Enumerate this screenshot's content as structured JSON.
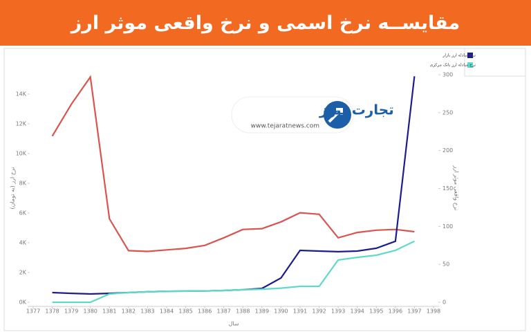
{
  "chart_data": {
    "type": "line",
    "title": "مقایســه نرخ اسمی و نرخ واقعی موثر ارز",
    "xlabel": "سال",
    "ylabel": "نرخ ارز (به تومان)",
    "y2label": "نرخ واقعی موثر ارز",
    "logo_text": "تجارت نیوز",
    "logo_url": "www.tejaratnews.com",
    "x": [
      1378,
      1379,
      1380,
      1381,
      1382,
      1383,
      1384,
      1385,
      1386,
      1387,
      1388,
      1389,
      1390,
      1391,
      1392,
      1393,
      1394,
      1395,
      1396,
      1397
    ],
    "series": [
      {
        "color": "#d9534f",
        "axis": "y2",
        "values": [
          219,
          261,
          297,
          110,
          68,
          67,
          69,
          71,
          75,
          85,
          96,
          97,
          106,
          118,
          116,
          85,
          92,
          95,
          96,
          93
        ]
      },
      {
        "name": "نرخ مبادله ارز بازار",
        "color": "#1c1c8a",
        "values": [
          650,
          600,
          560,
          600,
          650,
          700,
          740,
          750,
          760,
          790,
          840,
          930,
          1630,
          3490,
          3440,
          3400,
          3440,
          3630,
          4100,
          15200
        ]
      },
      {
        "name": "نرخ مبادله ارز بانک مرکزی",
        "color": "#5fd9c9",
        "values": [
          0,
          0,
          0,
          560,
          650,
          700,
          740,
          750,
          760,
          790,
          840,
          880,
          950,
          1070,
          1070,
          2840,
          3020,
          3160,
          3490,
          4100
        ]
      }
    ],
    "xlim": [
      1377,
      1398
    ],
    "xticks": [
      1377,
      1378,
      1379,
      1380,
      1381,
      1382,
      1383,
      1384,
      1385,
      1386,
      1387,
      1388,
      1389,
      1390,
      1391,
      1392,
      1393,
      1394,
      1395,
      1396,
      1397,
      1398
    ],
    "ylim": [
      0,
      15300
    ],
    "yticks": [
      {
        "value": 0,
        "label": "0K"
      },
      {
        "value": 2000,
        "label": "2K"
      },
      {
        "value": 4000,
        "label": "4K"
      },
      {
        "value": 6000,
        "label": "6K"
      },
      {
        "value": 8000,
        "label": "8K"
      },
      {
        "value": 10000,
        "label": "10K"
      },
      {
        "value": 12000,
        "label": "12K"
      },
      {
        "value": 14000,
        "label": "14K"
      }
    ],
    "y2lim": [
      0,
      300
    ],
    "y2ticks": [
      0,
      50,
      100,
      150,
      200,
      250,
      300
    ],
    "grid": false
  }
}
